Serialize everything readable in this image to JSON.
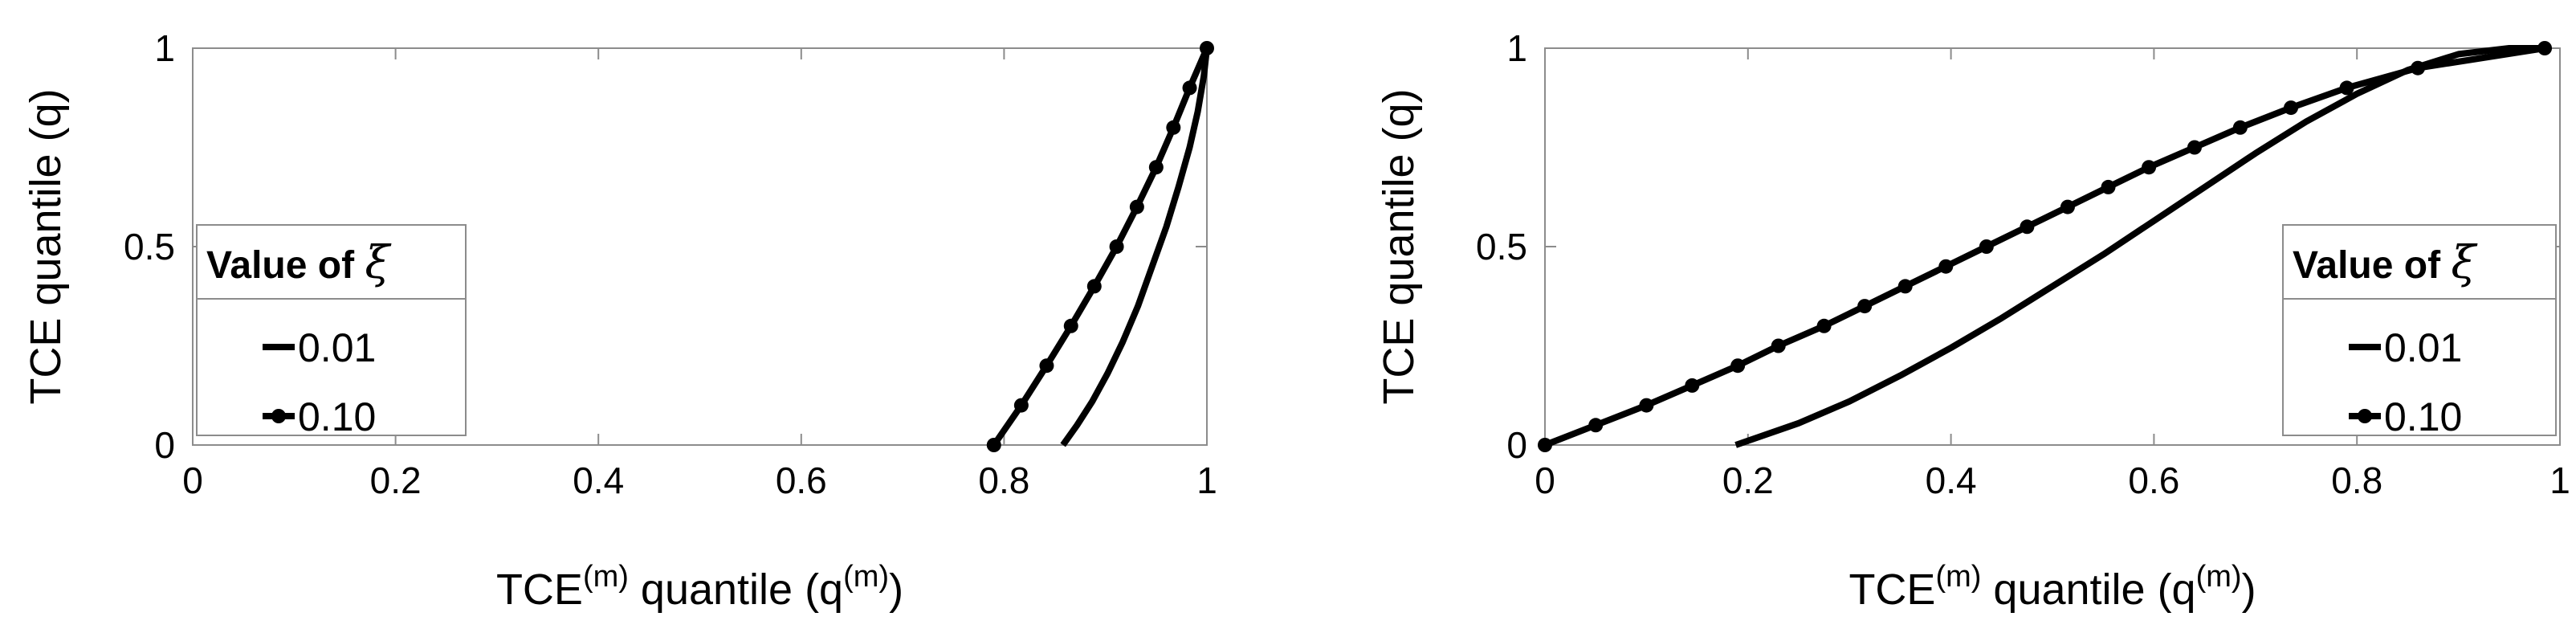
{
  "chart_data": [
    {
      "type": "line",
      "xlabel": "TCE",
      "xlabel_sup": "(m)",
      "xlabel_mid": " quantile (q",
      "xlabel_sup2": "(m)",
      "xlabel_end": ")",
      "ylabel": "TCE quantile (q)",
      "xlim": [
        0,
        1
      ],
      "ylim": [
        0,
        1
      ],
      "xticks": [
        "0",
        "0.2",
        "0.4",
        "0.6",
        "0.8",
        "1"
      ],
      "yticks": [
        "0",
        "0.5",
        "1"
      ],
      "legend": {
        "title": "Value of ",
        "title_symbol": "ξ",
        "placement": "left",
        "entries": [
          "0.01",
          "0.10"
        ]
      },
      "series": [
        {
          "name": "0.01",
          "marker": "none",
          "x": [
            0.858,
            0.872,
            0.887,
            0.902,
            0.917,
            0.932,
            0.946,
            0.96,
            0.972,
            0.983,
            0.991,
            0.997,
            1.0
          ],
          "y": [
            0.0,
            0.05,
            0.11,
            0.18,
            0.26,
            0.35,
            0.45,
            0.55,
            0.65,
            0.75,
            0.84,
            0.93,
            1.0
          ]
        },
        {
          "name": "0.10",
          "marker": "dot",
          "x": [
            0.79,
            0.817,
            0.842,
            0.866,
            0.889,
            0.911,
            0.931,
            0.95,
            0.967,
            0.983,
            1.0
          ],
          "y": [
            0.0,
            0.1,
            0.2,
            0.3,
            0.4,
            0.5,
            0.6,
            0.7,
            0.8,
            0.9,
            1.0
          ]
        }
      ]
    },
    {
      "type": "line",
      "xlabel": "TCE",
      "xlabel_sup": "(m)",
      "xlabel_mid": " quantile (q",
      "xlabel_sup2": "(m)",
      "xlabel_end": ")",
      "ylabel": "TCE quantile (q)",
      "xlim": [
        0,
        1
      ],
      "ylim": [
        0,
        1
      ],
      "xticks": [
        "0",
        "0.2",
        "0.4",
        "0.6",
        "0.8",
        "1"
      ],
      "yticks": [
        "0",
        "0.5",
        "1"
      ],
      "legend": {
        "title": "Value of ",
        "title_symbol": "ξ",
        "placement": "right",
        "entries": [
          "0.01",
          "0.10"
        ]
      },
      "series": [
        {
          "name": "0.01",
          "marker": "none",
          "x": [
            0.188,
            0.25,
            0.3,
            0.35,
            0.4,
            0.45,
            0.5,
            0.55,
            0.6,
            0.65,
            0.7,
            0.75,
            0.8,
            0.85,
            0.9,
            0.95,
            0.985
          ],
          "y": [
            0.0,
            0.055,
            0.11,
            0.175,
            0.245,
            0.32,
            0.4,
            0.48,
            0.565,
            0.65,
            0.735,
            0.815,
            0.885,
            0.945,
            0.985,
            1.0,
            1.0
          ]
        },
        {
          "name": "0.10",
          "marker": "dot",
          "x": [
            0.0,
            0.05,
            0.1,
            0.145,
            0.19,
            0.23,
            0.275,
            0.315,
            0.355,
            0.395,
            0.435,
            0.475,
            0.515,
            0.555,
            0.595,
            0.64,
            0.685,
            0.735,
            0.79,
            0.86,
            0.985
          ],
          "y": [
            0.0,
            0.05,
            0.1,
            0.15,
            0.2,
            0.25,
            0.3,
            0.35,
            0.4,
            0.45,
            0.5,
            0.55,
            0.6,
            0.65,
            0.7,
            0.75,
            0.8,
            0.85,
            0.9,
            0.95,
            1.0
          ]
        }
      ]
    }
  ]
}
